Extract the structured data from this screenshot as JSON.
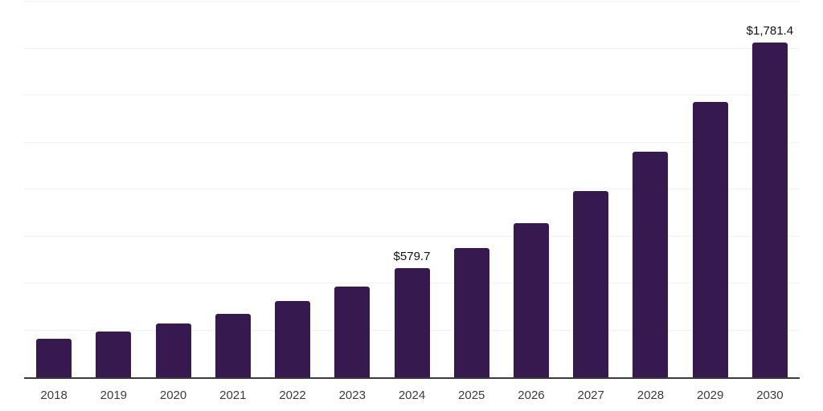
{
  "chart_data": {
    "type": "bar",
    "title": "",
    "xlabel": "",
    "ylabel": "",
    "categories": [
      "2018",
      "2019",
      "2020",
      "2021",
      "2022",
      "2023",
      "2024",
      "2025",
      "2026",
      "2027",
      "2028",
      "2029",
      "2030"
    ],
    "values": [
      207,
      245,
      286,
      339,
      406,
      482,
      579.7,
      688,
      822,
      992,
      1200,
      1464,
      1781.4
    ],
    "data_labels": {
      "2024": "$579.7",
      "2030": "$1,781.4"
    },
    "ylim": [
      0,
      2000
    ],
    "grid_step": 250,
    "grid": true,
    "legend": false,
    "colors": {
      "bar": "#36194e",
      "gridline": "#f2f2f2",
      "axis": "#3a3a3a",
      "tick_label": "#3c3c3c",
      "data_label": "#111111",
      "background": "#ffffff"
    }
  }
}
